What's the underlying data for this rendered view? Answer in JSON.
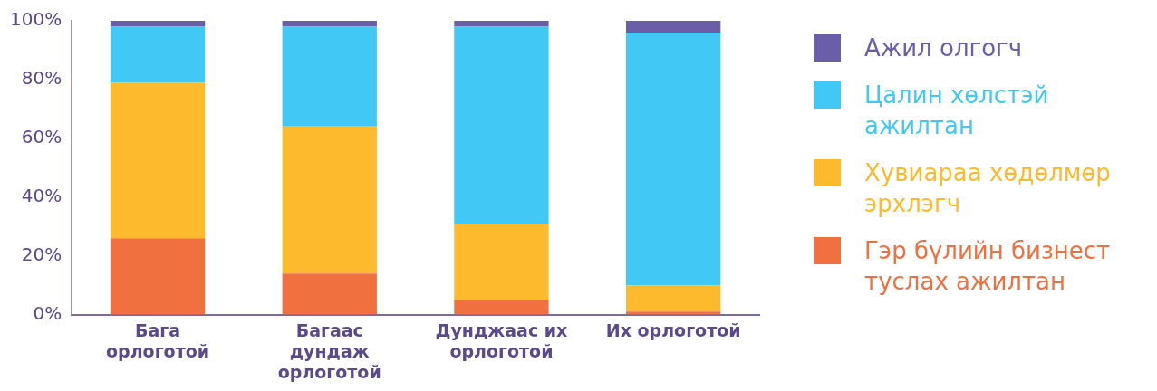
{
  "chart_data": {
    "type": "bar",
    "stacked": true,
    "categories": [
      "Бага орлоготой",
      "Багаас дундаж орлоготой",
      "Дунджаас их орлоготой",
      "Их орлоготой"
    ],
    "series": [
      {
        "name": "Гэр бүлийн бизнест туслах ажилтан",
        "color": "#f07040",
        "values": [
          26,
          14,
          5,
          1
        ]
      },
      {
        "name": "Хувиараа хөдөлмөр эрхлэгч",
        "color": "#fdba2c",
        "values": [
          53,
          50,
          26,
          9
        ]
      },
      {
        "name": "Цалин хөлстэй ажилтан",
        "color": "#42c8f4",
        "values": [
          19,
          34,
          67,
          86
        ]
      },
      {
        "name": "Ажил олгогч",
        "color": "#6b5ea8",
        "values": [
          2,
          2,
          2,
          4
        ]
      }
    ],
    "ylim": [
      0,
      100
    ],
    "yticks": [
      {
        "value": 0,
        "label": "0%"
      },
      {
        "value": 20,
        "label": "20%"
      },
      {
        "value": 40,
        "label": "40%"
      },
      {
        "value": 60,
        "label": "60%"
      },
      {
        "value": 80,
        "label": "80%"
      },
      {
        "value": 100,
        "label": "100%"
      }
    ],
    "grid": false,
    "legend": "right"
  }
}
